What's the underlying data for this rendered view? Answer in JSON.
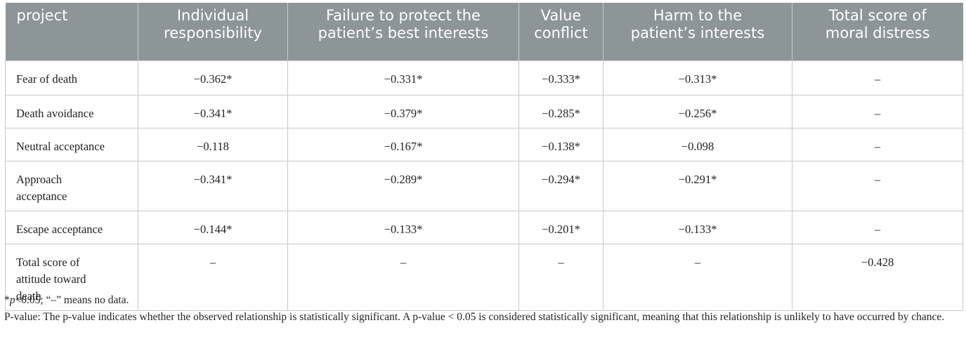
{
  "table": {
    "header": [
      [
        "project"
      ],
      [
        "Individual",
        "responsibility"
      ],
      [
        "Failure to protect the",
        "patient’s best interests"
      ],
      [
        "Value",
        "conflict"
      ],
      [
        "Harm to the",
        "patient’s interests"
      ],
      [
        "Total score of",
        "moral distress"
      ]
    ],
    "rows": [
      {
        "label": [
          "Fear of death"
        ],
        "values": [
          "−0.362*",
          "−0.331*",
          "−0.333*",
          "−0.313*",
          "–"
        ]
      },
      {
        "label": [
          "Death avoidance"
        ],
        "values": [
          "−0.341*",
          "−0.379*",
          "−0.285*",
          "−0.256*",
          "–"
        ]
      },
      {
        "label": [
          "Neutral acceptance"
        ],
        "values": [
          "−0.118",
          "−0.167*",
          "−0.138*",
          "−0.098",
          "–"
        ]
      },
      {
        "label": [
          "Approach",
          "acceptance"
        ],
        "values": [
          "−0.341*",
          "−0.289*",
          "−0.294*",
          "−0.291*",
          "–"
        ]
      },
      {
        "label": [
          "Escape acceptance"
        ],
        "values": [
          "−0.144*",
          "−0.133*",
          "−0.201*",
          "−0.133*",
          "–"
        ]
      },
      {
        "label": [
          "Total score of",
          "attitude toward",
          "death"
        ],
        "values": [
          "–",
          "–",
          "–",
          "–",
          "−0.428"
        ]
      }
    ]
  },
  "footnotes": {
    "significance": [
      "*",
      "p",
      "<0.05; “–” means no data."
    ],
    "explanation": "P-value: The p-value indicates whether the observed relationship is statistically significant. A p-value < 0.05 is considered statistically significant, meaning that this relationship is unlikely to have occurred by chance."
  }
}
